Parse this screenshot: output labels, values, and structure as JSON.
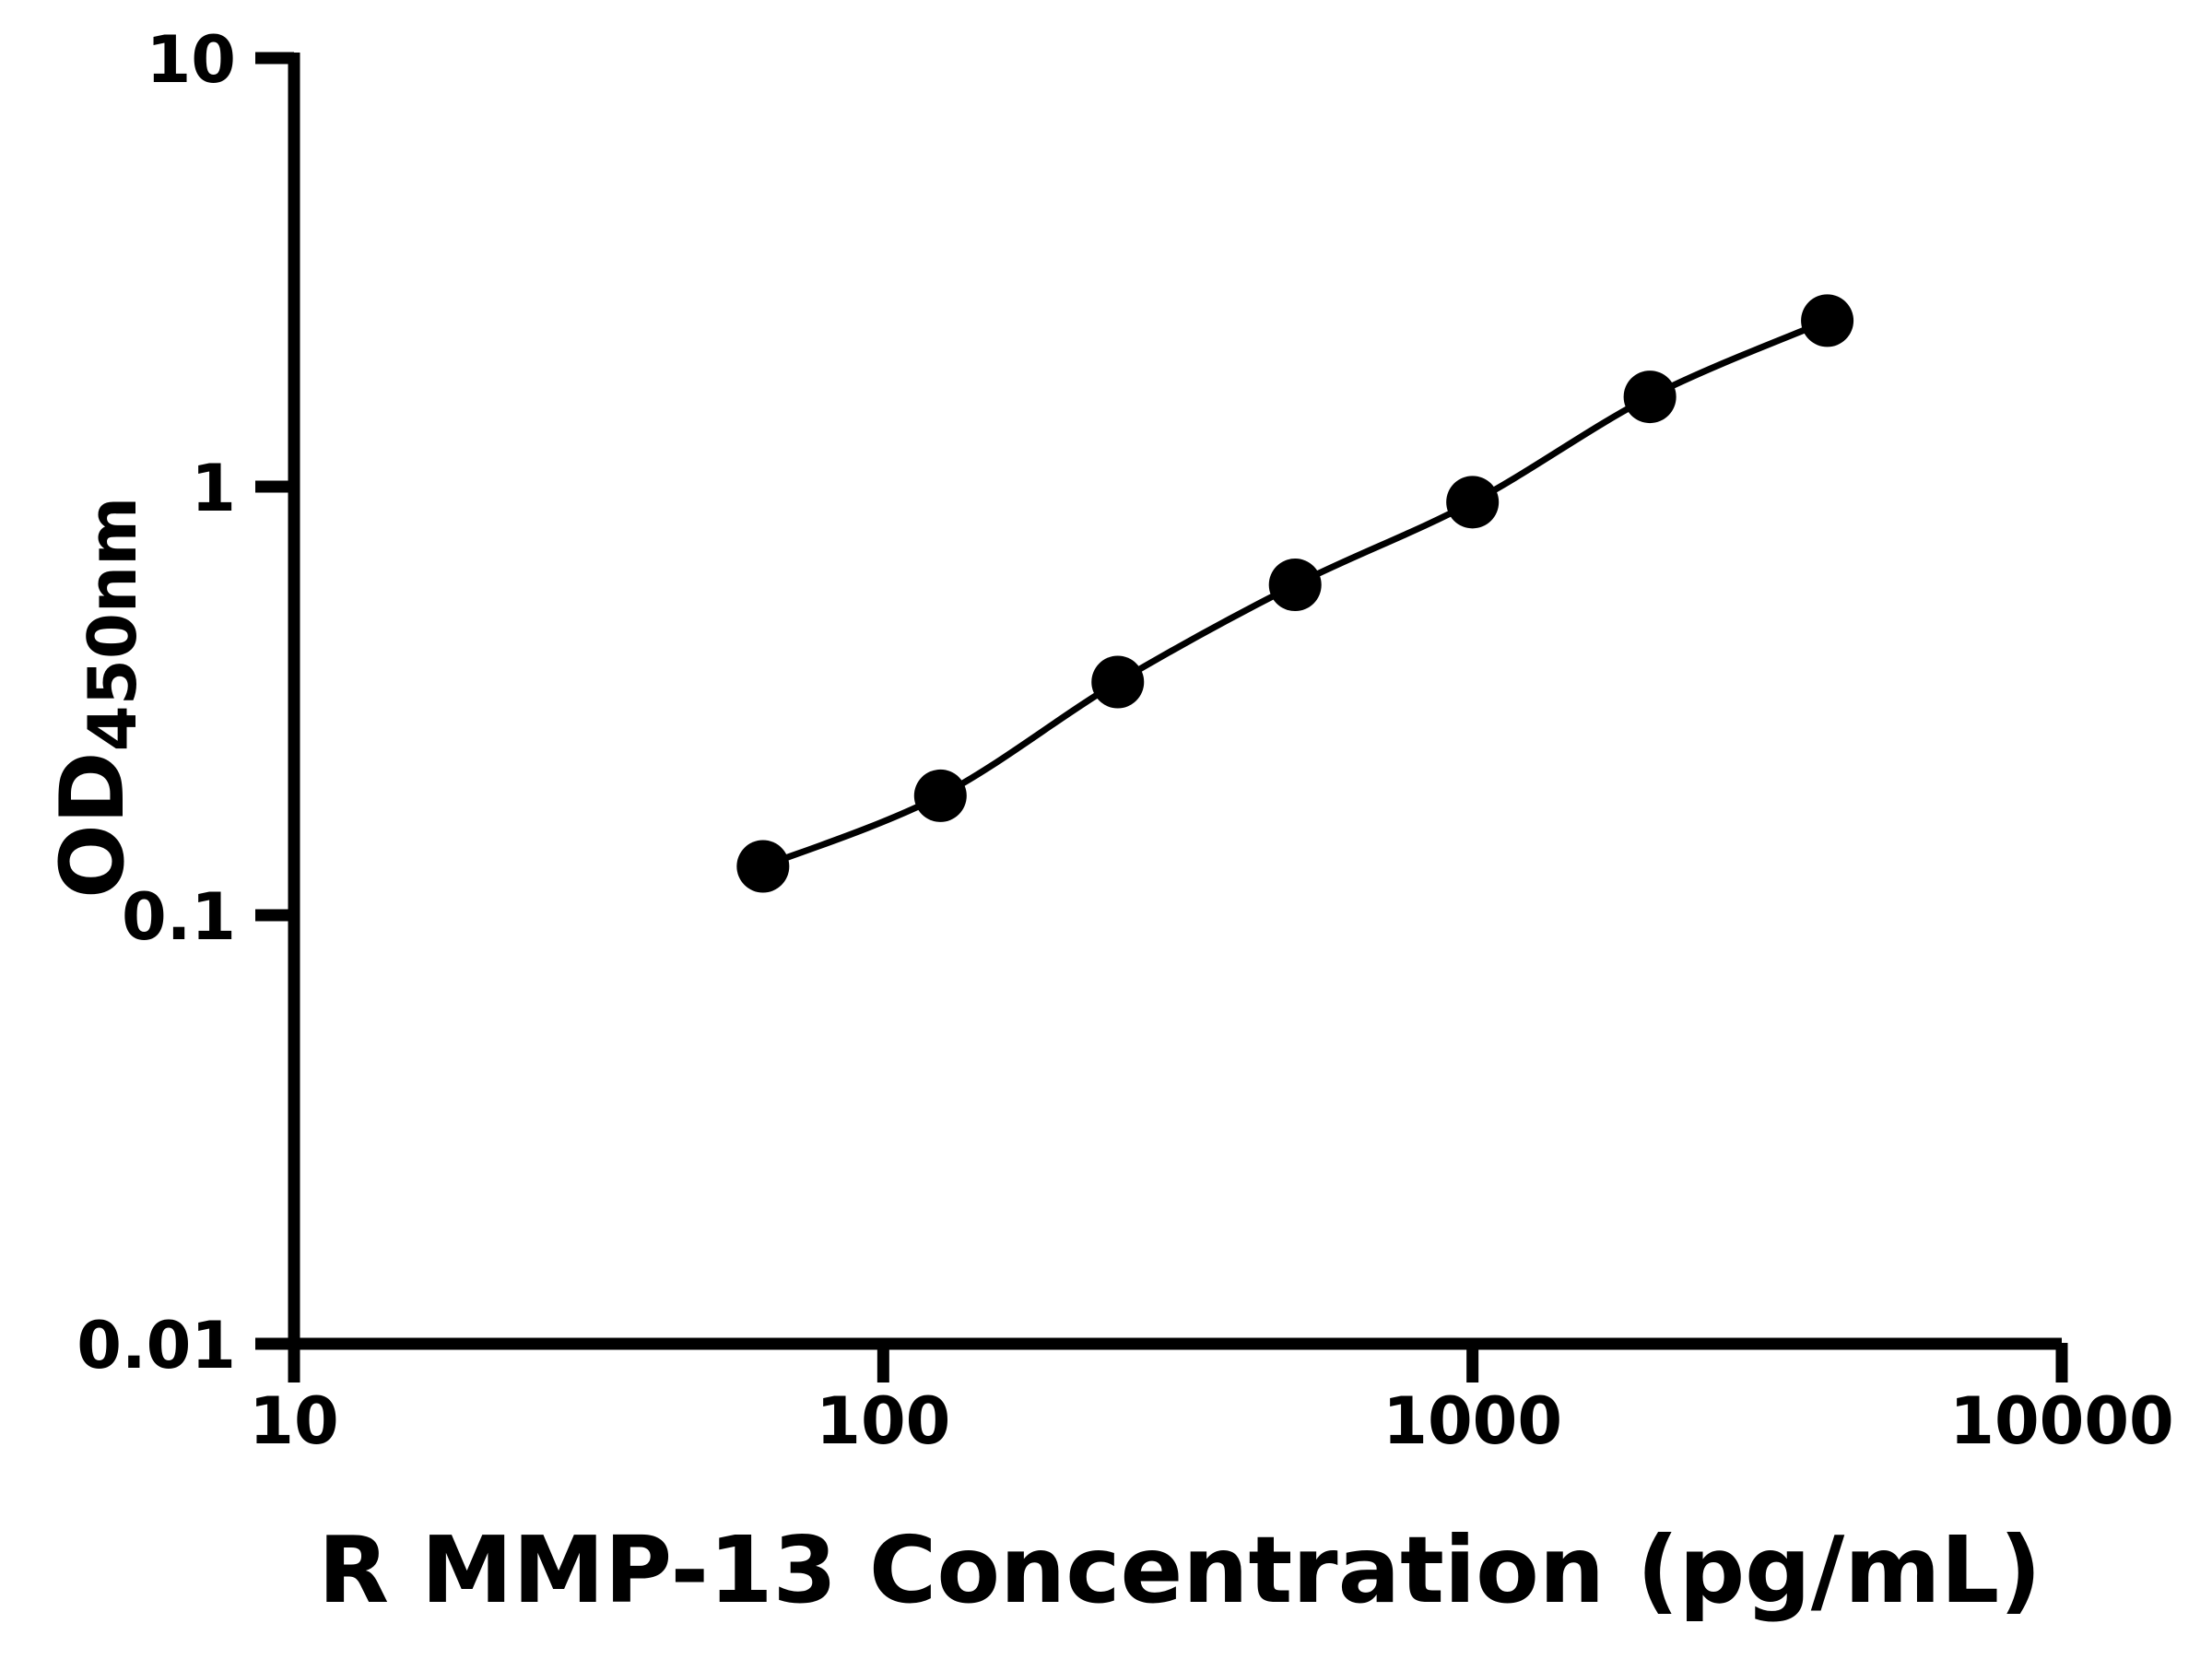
{
  "chart_data": {
    "type": "line",
    "title": "",
    "xlabel": "R MMP-13 Concentration (pg/mL)",
    "ylabel_main": "OD",
    "ylabel_sub": "450nm",
    "x": [
      62.5,
      125,
      250,
      500,
      1000,
      2000,
      4000
    ],
    "values": [
      0.13,
      0.19,
      0.35,
      0.59,
      0.92,
      1.62,
      2.44
    ],
    "x_scale": "log",
    "y_scale": "log",
    "xlim": [
      10,
      10000
    ],
    "ylim": [
      0.01,
      10
    ],
    "x_ticks": [
      10,
      100,
      1000,
      10000
    ],
    "x_tick_labels": [
      "10",
      "100",
      "1000",
      "10000"
    ],
    "y_ticks": [
      10,
      1,
      0.1,
      0.01
    ],
    "y_tick_labels": [
      "10",
      "1",
      "0.1",
      "0.01"
    ],
    "grid": false,
    "legend": false,
    "marker": "circle",
    "colors": {
      "background": "#ffffff",
      "axis": "#000000",
      "line": "#000000",
      "marker": "#000000",
      "text": "#000000"
    }
  }
}
